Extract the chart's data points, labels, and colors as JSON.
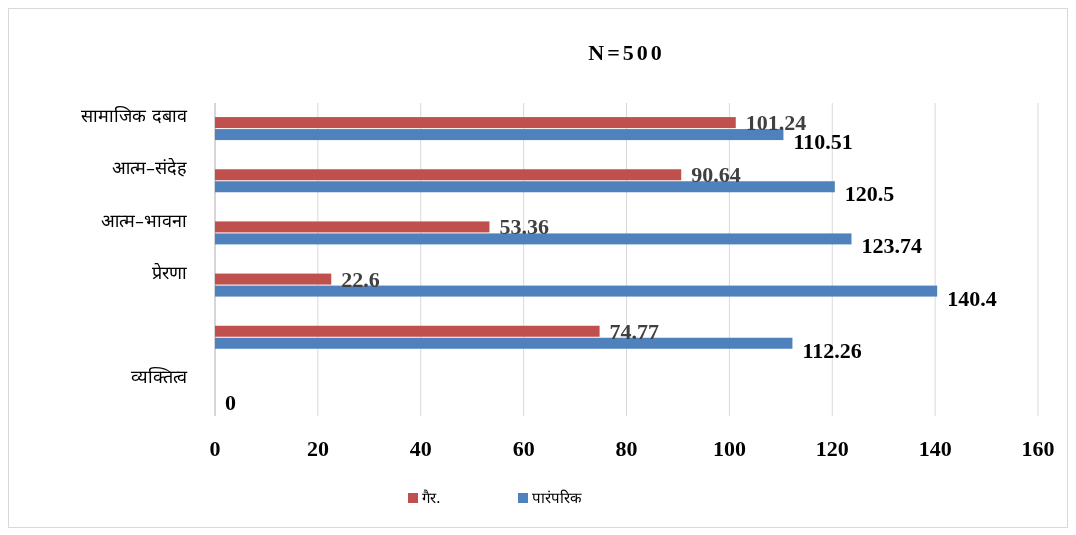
{
  "chart_data": {
    "type": "bar",
    "orientation": "horizontal",
    "title": "N=500",
    "categories": [
      "सामाजिक दबाव",
      "आत्म–संदेह",
      "आत्म–भावना",
      "प्रेरणा",
      null,
      "व्यक्तित्व"
    ],
    "series": [
      {
        "name": "गैर.",
        "color": "#c0504d",
        "values": [
          101.24,
          90.64,
          53.36,
          22.6,
          74.77,
          null
        ]
      },
      {
        "name": "पारंपरिक",
        "color": "#4f81bd",
        "values": [
          110.51,
          120.5,
          123.74,
          140.4,
          112.26,
          0
        ]
      }
    ],
    "xlim": [
      0,
      160
    ],
    "xticks": [
      0,
      20,
      40,
      60,
      80,
      100,
      120,
      140,
      160
    ],
    "grid": "x",
    "legend": "bottom",
    "data_labels": true
  }
}
